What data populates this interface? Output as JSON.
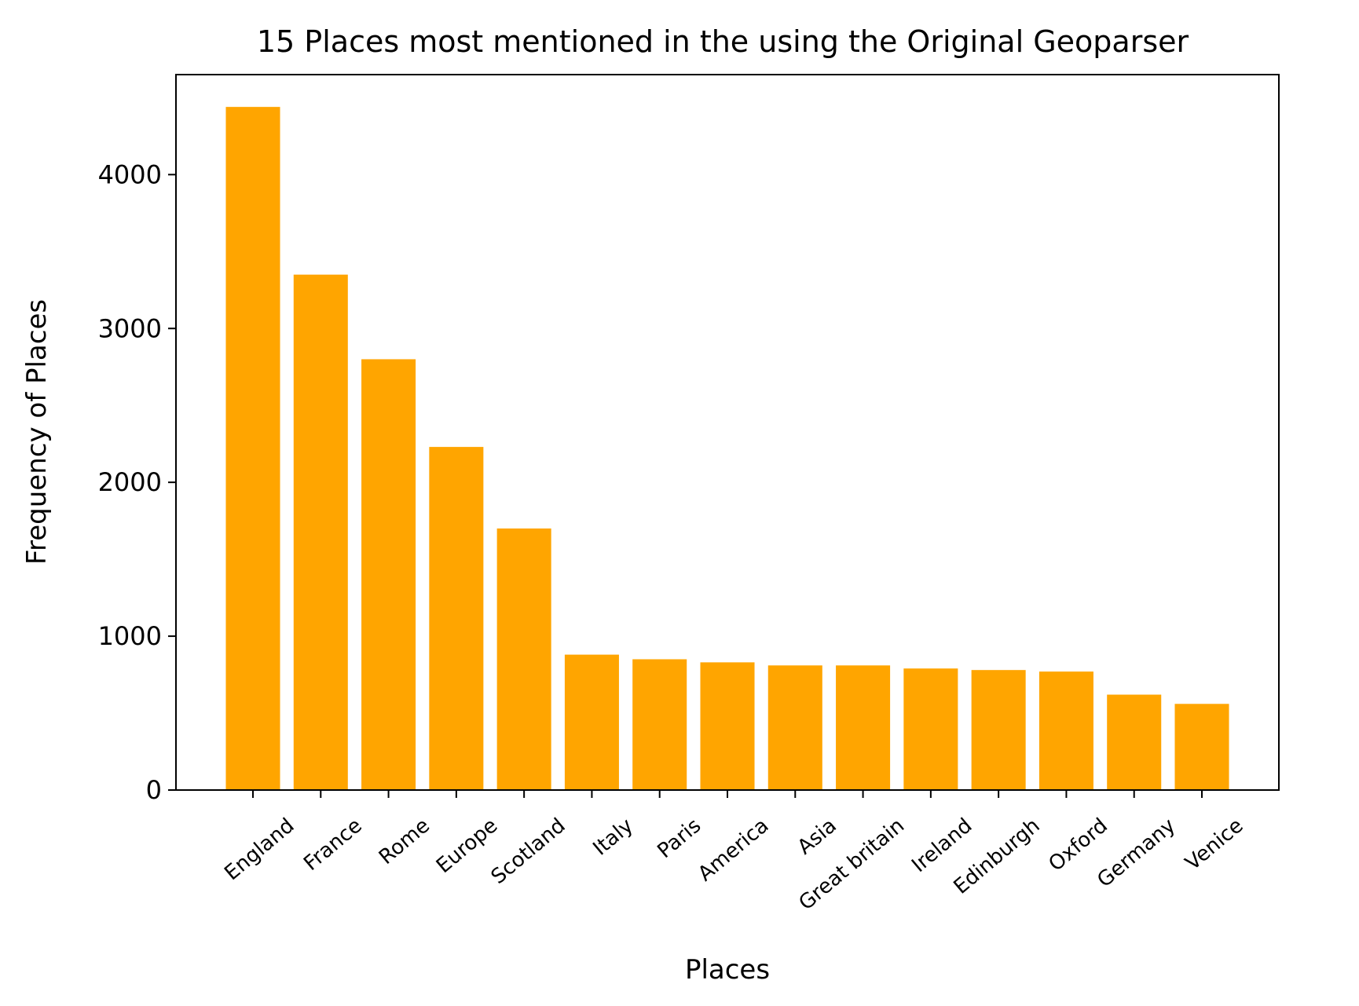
{
  "chart_data": {
    "type": "bar",
    "title": "15 Places most mentioned in the using the Original Geoparser",
    "xlabel": "Places",
    "ylabel": "Frequency of Places",
    "categories": [
      "England",
      "France",
      "Rome",
      "Europe",
      "Scotland",
      "Italy",
      "Paris",
      "America",
      "Asia",
      "Great britain",
      "Ireland",
      "Edinburgh",
      "Oxford",
      "Germany",
      "Venice"
    ],
    "values": [
      4440,
      3350,
      2800,
      2230,
      1700,
      880,
      850,
      830,
      810,
      810,
      790,
      780,
      770,
      620,
      560
    ],
    "ylim": [
      0,
      4650
    ],
    "yticks": [
      0,
      1000,
      2000,
      3000,
      4000
    ],
    "bar_color": "#ffa500",
    "grid": false,
    "legend": "none"
  }
}
